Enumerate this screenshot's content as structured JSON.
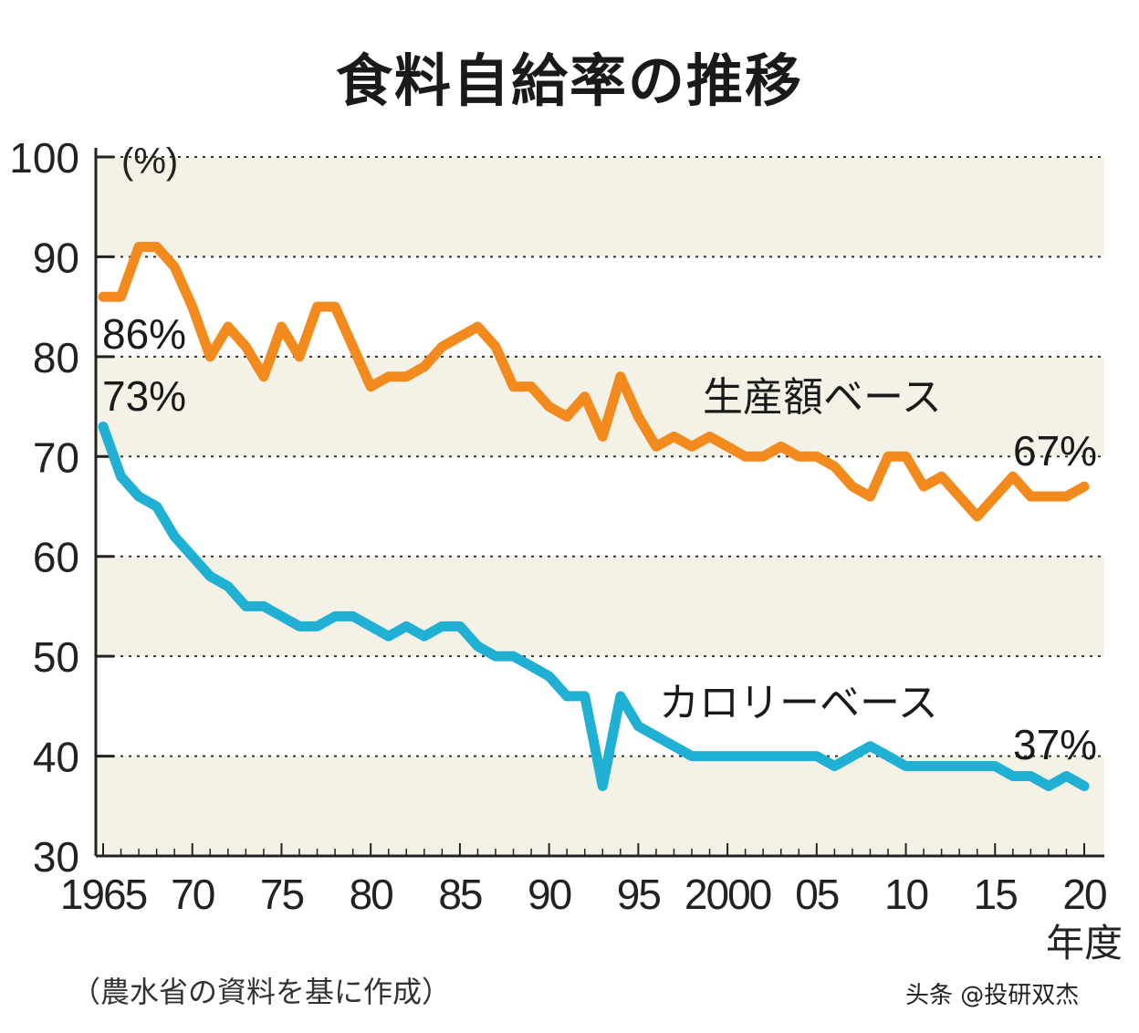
{
  "chart_data": {
    "type": "line",
    "title": "食料自給率の推移",
    "ylabel": "(%)",
    "xlabel": "年度",
    "ylim": [
      30,
      100
    ],
    "xlim": [
      1965,
      2020
    ],
    "yticks": [
      "100",
      "90",
      "80",
      "70",
      "60",
      "50",
      "40",
      "30"
    ],
    "xticks": [
      {
        "year": 1965,
        "label": "1965"
      },
      {
        "year": 1970,
        "label": "70"
      },
      {
        "year": 1975,
        "label": "75"
      },
      {
        "year": 1980,
        "label": "80"
      },
      {
        "year": 1985,
        "label": "85"
      },
      {
        "year": 1990,
        "label": "90"
      },
      {
        "year": 1995,
        "label": "95"
      },
      {
        "year": 2000,
        "label": "2000"
      },
      {
        "year": 2005,
        "label": "05"
      },
      {
        "year": 2010,
        "label": "10"
      },
      {
        "year": 2015,
        "label": "15"
      },
      {
        "year": 2020,
        "label": "20"
      }
    ],
    "grid": true,
    "series": [
      {
        "name": "生産額ベース",
        "color": "#f28a1e",
        "start_label": "86%",
        "end_label": "67%",
        "values": [
          86,
          86,
          91,
          91,
          89,
          85,
          80,
          83,
          81,
          78,
          83,
          80,
          85,
          85,
          81,
          77,
          78,
          78,
          79,
          81,
          82,
          83,
          81,
          77,
          77,
          75,
          74,
          76,
          72,
          78,
          74,
          71,
          72,
          71,
          72,
          71,
          70,
          70,
          71,
          70,
          70,
          69,
          67,
          66,
          70,
          70,
          67,
          68,
          66,
          64,
          66,
          68,
          66,
          66,
          66,
          67
        ]
      },
      {
        "name": "カロリーベース",
        "color": "#1fb0d4",
        "start_label": "73%",
        "end_label": "37%",
        "values": [
          73,
          68,
          66,
          65,
          62,
          60,
          58,
          57,
          55,
          55,
          54,
          53,
          53,
          54,
          54,
          53,
          52,
          53,
          52,
          53,
          53,
          51,
          50,
          50,
          49,
          48,
          46,
          46,
          37,
          46,
          43,
          42,
          41,
          40,
          40,
          40,
          40,
          40,
          40,
          40,
          40,
          39,
          40,
          41,
          40,
          39,
          39,
          39,
          39,
          39,
          39,
          38,
          38,
          37,
          38,
          37
        ]
      }
    ]
  },
  "source": "（農水省の資料を基に作成）",
  "watermark": "头条 @投研双杰"
}
